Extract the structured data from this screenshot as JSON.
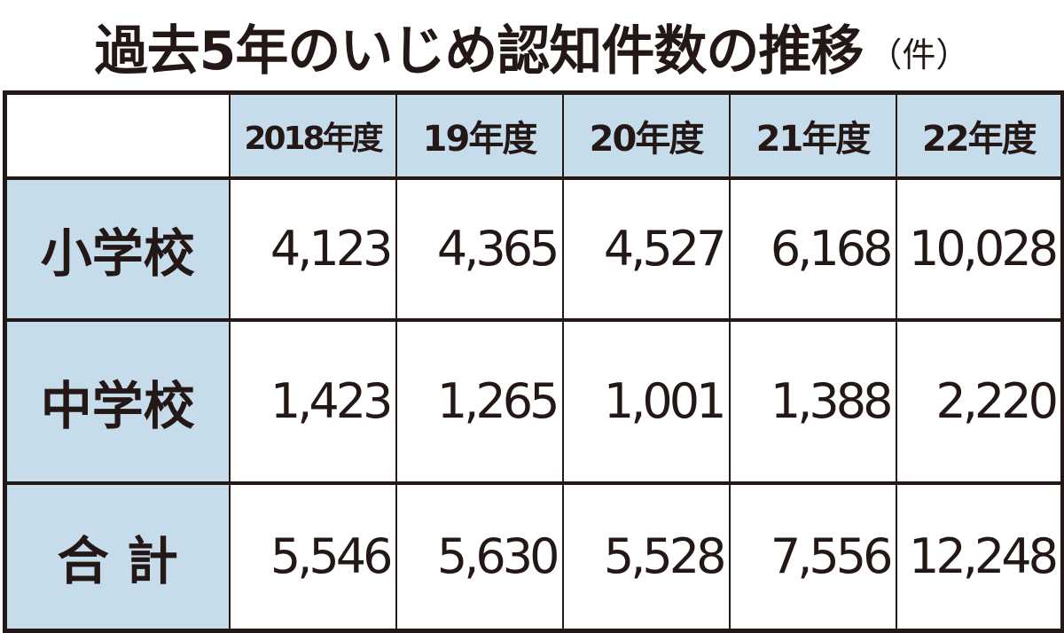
{
  "title": {
    "main": "過去5年のいじめ認知件数の推移",
    "unit": "（件）"
  },
  "table": {
    "corner": "",
    "columns": [
      "2018年度",
      "19年度",
      "20年度",
      "21年度",
      "22年度"
    ],
    "rows": [
      {
        "label": "小学校",
        "values": [
          "4,123",
          "4,365",
          "4,527",
          "6,168",
          "10,028"
        ]
      },
      {
        "label": "中学校",
        "values": [
          "1,423",
          "1,265",
          "1,001",
          "1,388",
          "2,220"
        ]
      },
      {
        "label": "合 計",
        "values": [
          "5,546",
          "5,630",
          "5,528",
          "7,556",
          "12,248"
        ]
      }
    ]
  },
  "colors": {
    "header_fill": "#c6dceb",
    "text": "#231815",
    "border": "#231815",
    "cell_fill": "#ffffff"
  },
  "chart_data": {
    "type": "table",
    "title": "過去5年のいじめ認知件数の推移",
    "unit": "件",
    "categories": [
      "2018年度",
      "19年度",
      "20年度",
      "21年度",
      "22年度"
    ],
    "series": [
      {
        "name": "小学校",
        "values": [
          4123,
          4365,
          4527,
          6168,
          10028
        ]
      },
      {
        "name": "中学校",
        "values": [
          1423,
          1265,
          1001,
          1388,
          2220
        ]
      },
      {
        "name": "合計",
        "values": [
          5546,
          5630,
          5528,
          7556,
          12248
        ]
      }
    ]
  }
}
